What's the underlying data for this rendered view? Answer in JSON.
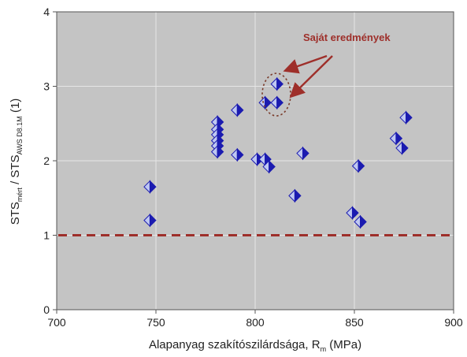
{
  "chart_data": {
    "type": "scatter",
    "xlabel": {
      "main": "Alapanyag szakítószilárdsága, R",
      "sub": "m",
      "unit": " (MPa)"
    },
    "ylabel": {
      "p1": "STS",
      "p1_sub": "mért",
      "p2": " / STS",
      "p2_sub": "AWS D8.1M",
      "p3": " (1)"
    },
    "xlim": [
      700,
      900
    ],
    "ylim": [
      0,
      4
    ],
    "xticks": [
      "700",
      "750",
      "800",
      "850",
      "900"
    ],
    "yticks": [
      "0",
      "1",
      "2",
      "3",
      "4"
    ],
    "grid": true,
    "reference_line": {
      "y": 1,
      "style": "dashed"
    },
    "annotation": {
      "text": "Saját eredmények"
    },
    "colors": {
      "background": "#c4c4c4",
      "grid": "#e6e6e6",
      "marker_dark": "#1b1bb0",
      "marker_light": "#bfc8f2",
      "reference": "#9e2f2a",
      "annotation": "#9e2f2a"
    },
    "series": [
      {
        "values": [
          [
            747,
            1.65
          ],
          [
            747,
            1.2
          ],
          [
            781,
            2.52
          ],
          [
            781,
            2.42
          ],
          [
            781,
            2.35
          ],
          [
            781,
            2.27
          ],
          [
            781,
            2.2
          ],
          [
            781,
            2.12
          ],
          [
            791,
            2.68
          ],
          [
            791,
            2.08
          ],
          [
            801,
            2.02
          ],
          [
            805,
            2.78
          ],
          [
            805,
            2.02
          ],
          [
            807,
            1.92
          ],
          [
            811,
            3.03
          ],
          [
            811,
            2.78
          ],
          [
            820,
            1.53
          ],
          [
            824,
            2.1
          ],
          [
            849,
            1.3
          ],
          [
            852,
            1.93
          ],
          [
            853,
            1.18
          ],
          [
            871,
            2.3
          ],
          [
            874,
            2.17
          ],
          [
            876,
            2.58
          ]
        ]
      }
    ]
  }
}
